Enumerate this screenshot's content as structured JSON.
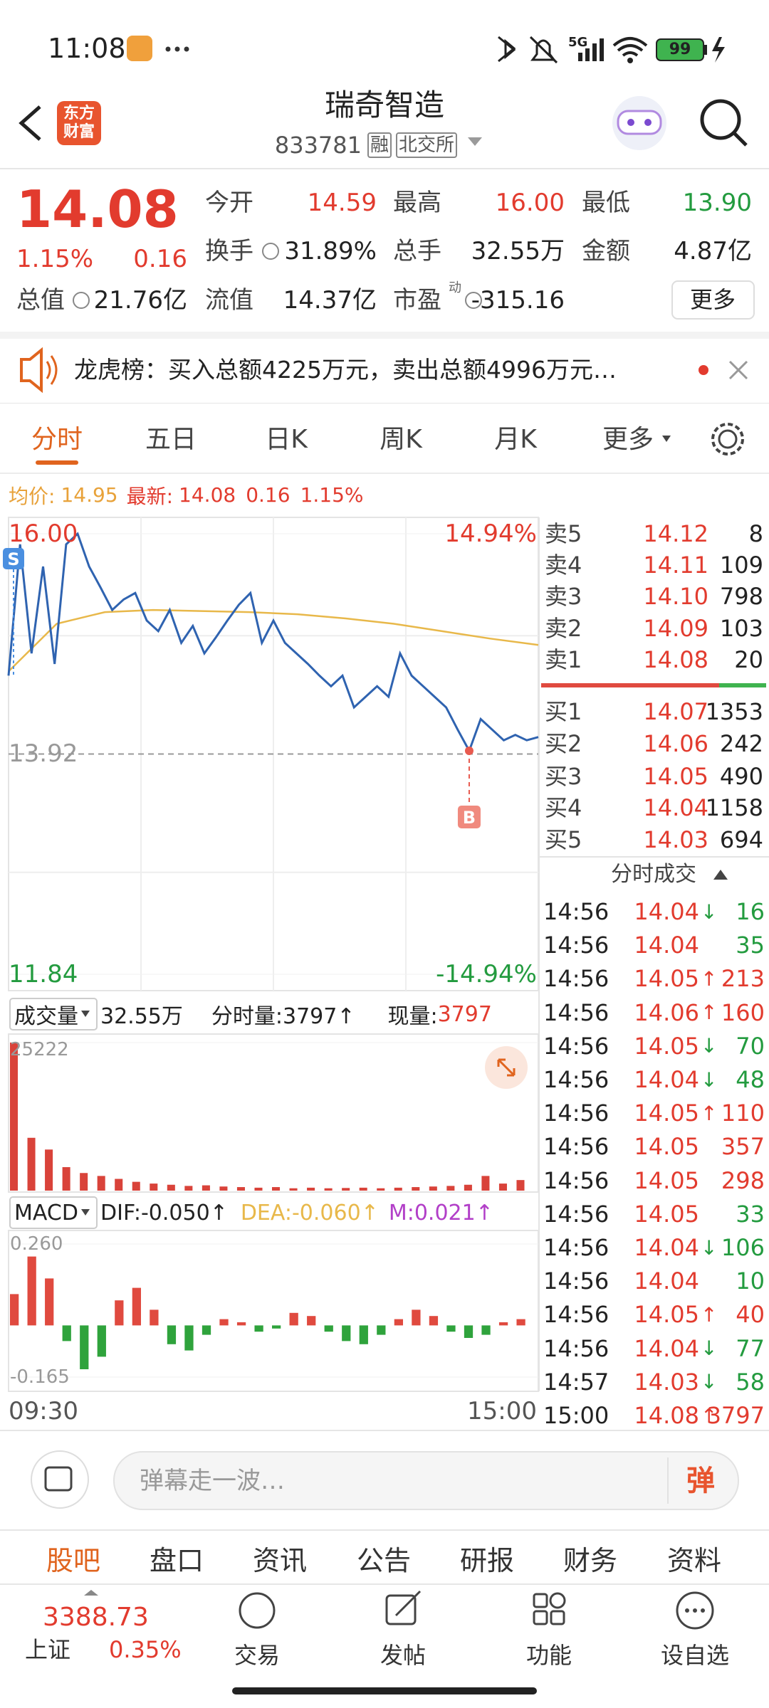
{
  "status_bar": {
    "time": "11:08",
    "network": "5G",
    "battery": "99"
  },
  "header": {
    "logo": "东方财富",
    "title": "瑞奇智造",
    "code": "833781",
    "tags": [
      "融",
      "北交所"
    ]
  },
  "quote": {
    "price": "14.08",
    "change_pct": "1.15%",
    "change": "0.16",
    "fields": [
      {
        "label": "今开",
        "value": "14.59",
        "color": "#e23b2e"
      },
      {
        "label": "最高",
        "value": "16.00",
        "color": "#e23b2e"
      },
      {
        "label": "最低",
        "value": "13.90",
        "color": "#239b3f"
      },
      {
        "label": "换手",
        "value": "31.89%",
        "color": "#222222"
      },
      {
        "label": "总手",
        "value": "32.55万",
        "color": "#222222"
      },
      {
        "label": "金额",
        "value": "4.87亿",
        "color": "#222222"
      },
      {
        "label": "总值",
        "value": "21.76亿",
        "color": "#222222"
      },
      {
        "label": "流值",
        "value": "14.37亿",
        "color": "#222222"
      },
      {
        "label": "市盈",
        "value": "-315.16",
        "color": "#222222"
      }
    ],
    "pe_superscript": "动",
    "more": "更多"
  },
  "banner": {
    "text": "龙虎榜：买入总额4225万元，卖出总额4996万元…"
  },
  "tabs": {
    "items": [
      "分时",
      "五日",
      "日K",
      "周K",
      "月K",
      "更多"
    ],
    "active": 0
  },
  "info_line": {
    "avg_label": "均价:",
    "avg": "14.95",
    "latest_label": "最新:",
    "latest": "14.08",
    "change": "0.16",
    "change_pct": "1.15%"
  },
  "price_chart": {
    "ylim": [
      11.84,
      16.0
    ],
    "yticks": [
      {
        "value": 16,
        "label": "16.00"
      },
      {
        "value": 13.92,
        "label": "13.92"
      },
      {
        "value": 11.84,
        "label": "11.84"
      }
    ],
    "pct_labels": [
      "14.94%",
      "-14.94%"
    ],
    "prices": [
      14.66,
      15.9,
      14.87,
      15.69,
      14.77,
      15.9,
      16.0,
      15.69,
      15.49,
      15.28,
      15.38,
      15.44,
      15.18,
      15.08,
      15.28,
      14.97,
      15.13,
      14.87,
      15.02,
      15.18,
      15.33,
      15.44,
      14.97,
      15.18,
      14.97,
      14.87,
      14.77,
      14.66,
      14.56,
      14.66,
      14.36,
      14.46,
      14.56,
      14.46,
      14.87,
      14.66,
      14.56,
      14.46,
      14.36,
      14.15,
      13.95,
      14.25,
      14.15,
      14.05,
      14.1,
      14.05,
      14.08
    ],
    "avg_prices": [
      14.7,
      15.15,
      15.26,
      15.28,
      15.27,
      15.26,
      15.24,
      15.2,
      15.15,
      15.08,
      15.01,
      14.95
    ],
    "price_color": "#2f63b0",
    "avg_color": "#e8b84a",
    "markers": [
      "S",
      "B"
    ]
  },
  "order_book": {
    "asks": [
      {
        "label": "卖5",
        "price": "14.12",
        "volume": "8"
      },
      {
        "label": "卖4",
        "price": "14.11",
        "volume": "109"
      },
      {
        "label": "卖3",
        "price": "14.10",
        "volume": "798"
      },
      {
        "label": "卖2",
        "price": "14.09",
        "volume": "103"
      },
      {
        "label": "卖1",
        "price": "14.08",
        "volume": "20"
      }
    ],
    "bids": [
      {
        "label": "买1",
        "price": "14.07",
        "volume": "1353"
      },
      {
        "label": "买2",
        "price": "14.06",
        "volume": "242"
      },
      {
        "label": "买3",
        "price": "14.05",
        "volume": "490"
      },
      {
        "label": "买4",
        "price": "14.04",
        "volume": "1158"
      },
      {
        "label": "买5",
        "price": "14.03",
        "volume": "694"
      }
    ]
  },
  "trades": {
    "title": "分时成交",
    "rows": [
      {
        "time": "14:56",
        "price": "14.04",
        "arrow": "↓",
        "volume": "16",
        "color": "#239b3f"
      },
      {
        "time": "14:56",
        "price": "14.04",
        "volume": "35",
        "color": "#239b3f"
      },
      {
        "time": "14:56",
        "price": "14.05",
        "arrow": "↑",
        "volume": "213",
        "color": "#e23b2e"
      },
      {
        "time": "14:56",
        "price": "14.06",
        "arrow": "↑",
        "volume": "160",
        "color": "#e23b2e"
      },
      {
        "time": "14:56",
        "price": "14.05",
        "arrow": "↓",
        "volume": "70",
        "color": "#239b3f"
      },
      {
        "time": "14:56",
        "price": "14.04",
        "arrow": "↓",
        "volume": "48",
        "color": "#239b3f"
      },
      {
        "time": "14:56",
        "price": "14.05",
        "arrow": "↑",
        "volume": "110",
        "color": "#e23b2e"
      },
      {
        "time": "14:56",
        "price": "14.05",
        "volume": "357",
        "color": "#e23b2e"
      },
      {
        "time": "14:56",
        "price": "14.05",
        "volume": "298",
        "color": "#e23b2e"
      },
      {
        "time": "14:56",
        "price": "14.05",
        "volume": "33",
        "color": "#239b3f"
      },
      {
        "time": "14:56",
        "price": "14.04",
        "arrow": "↓",
        "volume": "106",
        "color": "#239b3f"
      },
      {
        "time": "14:56",
        "price": "14.04",
        "volume": "10",
        "color": "#239b3f"
      },
      {
        "time": "14:56",
        "price": "14.05",
        "arrow": "↑",
        "volume": "40",
        "color": "#e23b2e"
      },
      {
        "time": "14:56",
        "price": "14.04",
        "arrow": "↓",
        "volume": "77",
        "color": "#239b3f"
      },
      {
        "time": "14:57",
        "price": "14.03",
        "arrow": "↓",
        "volume": "58",
        "color": "#239b3f"
      },
      {
        "time": "15:00",
        "price": "14.08",
        "arrow": "↑",
        "volume": "3797",
        "color": "#e23b2e"
      }
    ]
  },
  "volume_chart": {
    "label": "成交量",
    "total": "32.55万",
    "period": "分时量:3797↑",
    "current_label": "现量:",
    "current": "3797",
    "ylim": [
      0,
      25222
    ],
    "yticks": [
      25222
    ],
    "values": [
      25222,
      9000,
      7000,
      4000,
      3000,
      2500,
      2000,
      1500,
      1200,
      1000,
      800,
      900,
      700,
      600,
      500,
      600,
      400,
      500,
      400,
      450,
      500,
      400,
      500,
      600,
      700,
      800,
      1000,
      2500,
      1200,
      1800
    ],
    "color": "#d9433a"
  },
  "macd_chart": {
    "label": "MACD",
    "dif": "DIF:-0.050↑",
    "dea": "DEA:-0.060↑",
    "m": "M:0.021↑",
    "ylim": [
      -0.165,
      0.26
    ],
    "yticks": [
      {
        "value": 0.26,
        "label": "0.260"
      },
      {
        "value": -0.165,
        "label": "-0.165"
      }
    ],
    "values": [
      0.1,
      0.22,
      0.15,
      -0.05,
      -0.14,
      -0.1,
      0.08,
      0.12,
      0.05,
      -0.06,
      -0.08,
      -0.03,
      0.02,
      0.01,
      -0.02,
      -0.01,
      0.04,
      0.03,
      -0.02,
      -0.05,
      -0.06,
      -0.03,
      0.02,
      0.05,
      0.03,
      -0.02,
      -0.04,
      -0.03,
      0.01,
      0.02
    ],
    "pos_color": "#e04a3f",
    "neg_color": "#2fa33c",
    "x_labels": [
      "09:30",
      "15:00"
    ]
  },
  "comment": {
    "placeholder": "弹幕走一波…",
    "button": "弹"
  },
  "bottom_tabs": {
    "items": [
      "股吧",
      "盘口",
      "资讯",
      "公告",
      "研报",
      "财务",
      "资料"
    ],
    "active": 0
  },
  "nav": {
    "index_value": "3388.73",
    "index_name": "上证",
    "index_change": "0.35%",
    "items": [
      "交易",
      "发帖",
      "功能",
      "设自选"
    ]
  }
}
